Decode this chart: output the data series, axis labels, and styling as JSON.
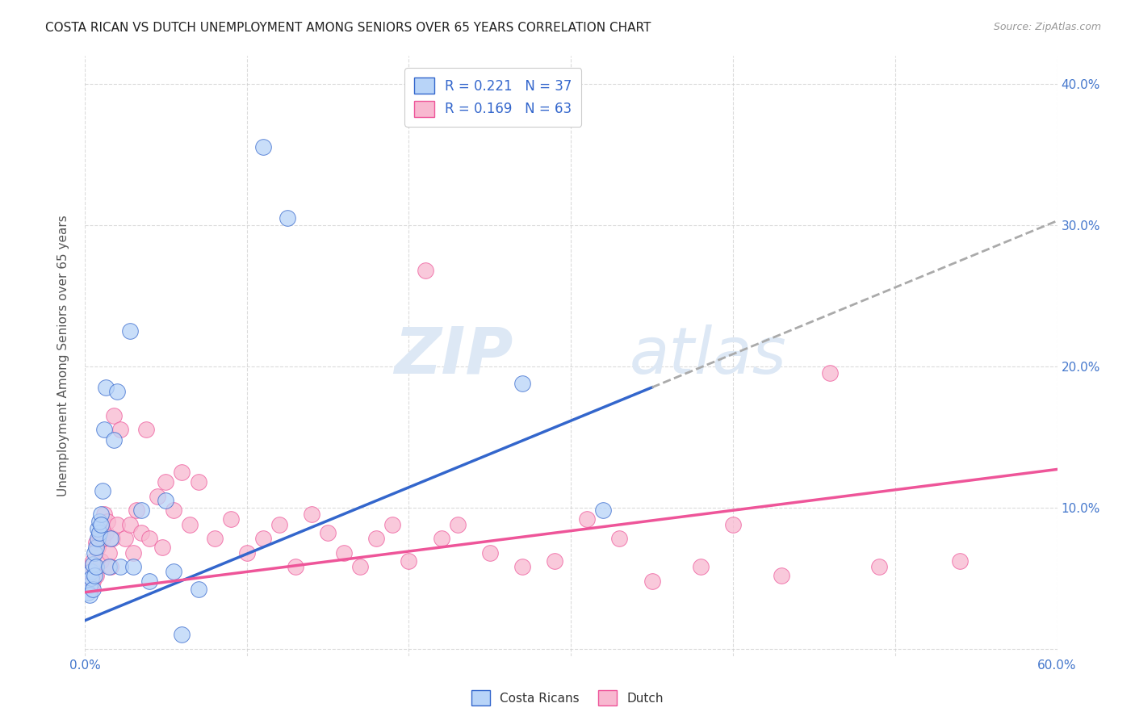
{
  "title": "COSTA RICAN VS DUTCH UNEMPLOYMENT AMONG SENIORS OVER 65 YEARS CORRELATION CHART",
  "source": "Source: ZipAtlas.com",
  "ylabel": "Unemployment Among Seniors over 65 years",
  "xlim": [
    0.0,
    0.6
  ],
  "ylim": [
    -0.005,
    0.42
  ],
  "xticks": [
    0.0,
    0.1,
    0.2,
    0.3,
    0.4,
    0.5,
    0.6
  ],
  "yticks": [
    0.0,
    0.1,
    0.2,
    0.3,
    0.4
  ],
  "costa_rican_R": 0.221,
  "costa_rican_N": 37,
  "dutch_R": 0.169,
  "dutch_N": 63,
  "costa_rican_color": "#b8d4f8",
  "dutch_color": "#f8b8d0",
  "costa_rican_line_color": "#3366cc",
  "dutch_line_color": "#ee5599",
  "dashed_line_color": "#aaaaaa",
  "background_color": "#ffffff",
  "grid_color": "#cccccc",
  "cr_line_x0": 0.0,
  "cr_line_y0": 0.02,
  "cr_line_x1": 0.35,
  "cr_line_y1": 0.185,
  "dutch_line_x0": 0.0,
  "dutch_line_y0": 0.04,
  "dutch_line_x1": 0.6,
  "dutch_line_y1": 0.127,
  "costa_ricans_x": [
    0.002,
    0.003,
    0.003,
    0.004,
    0.004,
    0.005,
    0.005,
    0.006,
    0.006,
    0.007,
    0.007,
    0.008,
    0.008,
    0.009,
    0.009,
    0.01,
    0.01,
    0.011,
    0.012,
    0.013,
    0.015,
    0.016,
    0.018,
    0.02,
    0.022,
    0.028,
    0.03,
    0.035,
    0.04,
    0.05,
    0.055,
    0.06,
    0.07,
    0.11,
    0.125,
    0.27,
    0.32
  ],
  "costa_ricans_y": [
    0.04,
    0.045,
    0.038,
    0.055,
    0.05,
    0.042,
    0.06,
    0.052,
    0.068,
    0.058,
    0.072,
    0.078,
    0.085,
    0.082,
    0.09,
    0.095,
    0.088,
    0.112,
    0.155,
    0.185,
    0.058,
    0.078,
    0.148,
    0.182,
    0.058,
    0.225,
    0.058,
    0.098,
    0.048,
    0.105,
    0.055,
    0.01,
    0.042,
    0.355,
    0.305,
    0.188,
    0.098
  ],
  "dutch_x": [
    0.002,
    0.003,
    0.004,
    0.005,
    0.005,
    0.006,
    0.007,
    0.007,
    0.008,
    0.009,
    0.01,
    0.011,
    0.012,
    0.013,
    0.014,
    0.015,
    0.016,
    0.017,
    0.018,
    0.02,
    0.022,
    0.025,
    0.028,
    0.03,
    0.032,
    0.035,
    0.038,
    0.04,
    0.045,
    0.048,
    0.05,
    0.055,
    0.06,
    0.065,
    0.07,
    0.08,
    0.09,
    0.1,
    0.11,
    0.12,
    0.13,
    0.14,
    0.15,
    0.16,
    0.17,
    0.18,
    0.19,
    0.2,
    0.21,
    0.22,
    0.23,
    0.25,
    0.27,
    0.29,
    0.31,
    0.33,
    0.35,
    0.38,
    0.4,
    0.43,
    0.46,
    0.49,
    0.54
  ],
  "dutch_y": [
    0.048,
    0.055,
    0.042,
    0.048,
    0.062,
    0.055,
    0.052,
    0.075,
    0.072,
    0.08,
    0.062,
    0.078,
    0.095,
    0.082,
    0.09,
    0.068,
    0.058,
    0.078,
    0.165,
    0.088,
    0.155,
    0.078,
    0.088,
    0.068,
    0.098,
    0.082,
    0.155,
    0.078,
    0.108,
    0.072,
    0.118,
    0.098,
    0.125,
    0.088,
    0.118,
    0.078,
    0.092,
    0.068,
    0.078,
    0.088,
    0.058,
    0.095,
    0.082,
    0.068,
    0.058,
    0.078,
    0.088,
    0.062,
    0.268,
    0.078,
    0.088,
    0.068,
    0.058,
    0.062,
    0.092,
    0.078,
    0.048,
    0.058,
    0.088,
    0.052,
    0.195,
    0.058,
    0.062
  ]
}
